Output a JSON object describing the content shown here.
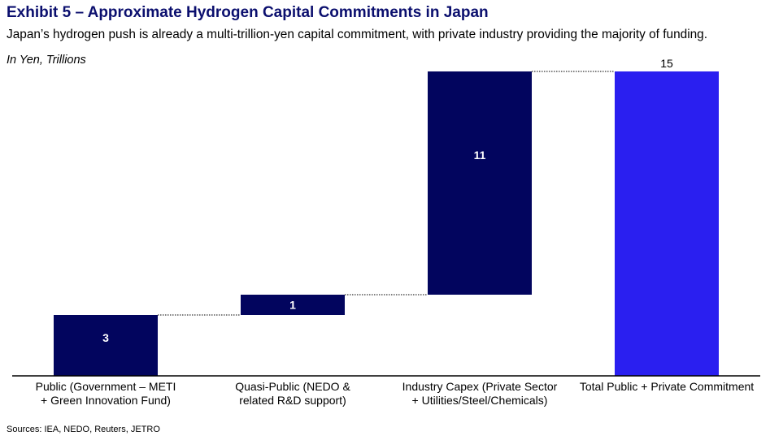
{
  "header": {
    "title": "Exhibit 5 – Approximate Hydrogen Capital Commitments in Japan",
    "subtitle": "Japan’s hydrogen push is already a multi-trillion-yen capital commitment, with private industry providing the majority of funding.",
    "units": "In Yen, Trillions"
  },
  "footer": {
    "source": "Sources: IEA, NEDO, Reuters, JETRO"
  },
  "colors": {
    "step": "#02055e",
    "total": "#2a1ff0",
    "axis": "#000000",
    "connector": "#000000"
  },
  "chart_data": {
    "type": "bar",
    "subtype": "waterfall",
    "title": "Exhibit 5 – Approximate Hydrogen Capital Commitments in Japan",
    "ylabel": "In Yen, Trillions",
    "ylim": [
      0,
      15
    ],
    "grid": false,
    "categories": [
      [
        "Public (Government – METI",
        "+ Green Innovation Fund)"
      ],
      [
        "Quasi-Public (NEDO &",
        "related R&D support)"
      ],
      [
        "Industry Capex (Private Sector",
        "+ Utilities/Steel/Chemicals)"
      ],
      [
        "Total Public + Private Commitment"
      ]
    ],
    "values": [
      3,
      1,
      11,
      15
    ],
    "labels": [
      "3",
      "1",
      "11",
      "15"
    ],
    "is_total": [
      false,
      false,
      false,
      true
    ]
  }
}
